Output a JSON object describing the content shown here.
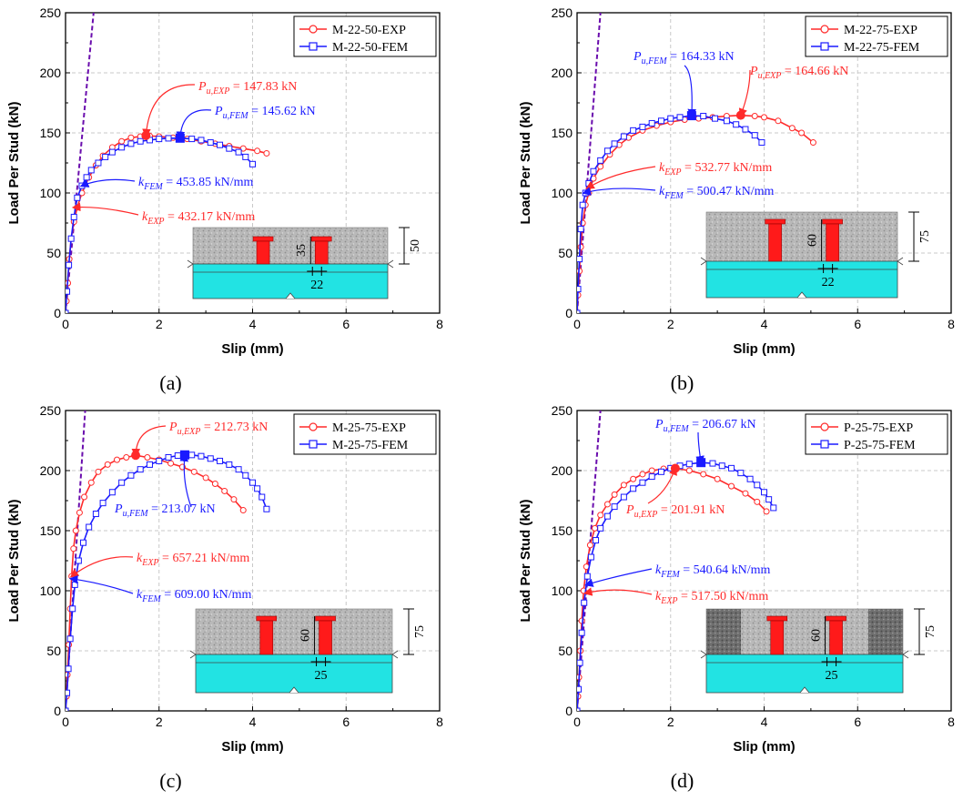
{
  "figure": {
    "colors": {
      "exp": "#ff2a2a",
      "fem": "#1a1aff",
      "slope": "#6a0dad",
      "concrete": "#b9b9b9",
      "steel": "#22e3e3",
      "stud": "#ff1a1a"
    }
  },
  "chart_data": [
    {
      "type": "line",
      "panel_label": "(a)",
      "xlabel": "Slip (mm)",
      "ylabel": "Load Per Stud (kN)",
      "xlim": [
        0,
        8
      ],
      "ylim": [
        0,
        250
      ],
      "xticks": [
        "0",
        "2",
        "4",
        "6",
        "8"
      ],
      "yticks": [
        "0",
        "50",
        "100",
        "150",
        "200",
        "250"
      ],
      "grid": true,
      "legend_position": "top-right",
      "series": [
        {
          "name": "M-22-50-EXP",
          "marker": "circle",
          "color": "#ff2a2a",
          "x": [
            0,
            0.02,
            0.05,
            0.08,
            0.12,
            0.18,
            0.25,
            0.35,
            0.5,
            0.65,
            0.8,
            1.0,
            1.2,
            1.4,
            1.6,
            1.8,
            2.0,
            2.3,
            2.6,
            2.9,
            3.2,
            3.5,
            3.8,
            4.1,
            4.3
          ],
          "y": [
            0,
            10,
            25,
            45,
            62,
            76,
            88,
            100,
            113,
            123,
            131,
            138,
            143,
            146,
            147,
            147.5,
            147,
            146,
            145,
            143,
            141,
            139,
            137,
            135,
            133
          ]
        },
        {
          "name": "M-22-50-FEM",
          "marker": "square",
          "color": "#1a1aff",
          "x": [
            0,
            0.03,
            0.07,
            0.12,
            0.18,
            0.25,
            0.35,
            0.45,
            0.55,
            0.7,
            0.85,
            1.0,
            1.2,
            1.4,
            1.6,
            1.8,
            2.0,
            2.2,
            2.45,
            2.7,
            2.9,
            3.1,
            3.3,
            3.5,
            3.7,
            3.85,
            4.0
          ],
          "y": [
            0,
            18,
            40,
            62,
            80,
            96,
            106,
            113,
            119,
            125,
            130,
            134,
            138,
            141,
            143,
            144,
            145,
            145.5,
            145.6,
            145,
            144,
            142,
            140,
            137,
            134,
            130,
            124
          ]
        }
      ],
      "peaks": [
        {
          "series": "EXP",
          "x": 1.72,
          "y": 147.83
        },
        {
          "series": "FEM",
          "x": 2.45,
          "y": 145.62
        }
      ],
      "slope_line": {
        "x": [
          0,
          0.6
        ],
        "y": [
          0,
          250
        ]
      },
      "annotations": [
        {
          "series": "EXP",
          "symbol": "P",
          "subscript": "u,EXP",
          "value": "= 147.83 kN"
        },
        {
          "series": "FEM",
          "symbol": "P",
          "subscript": "u,FEM",
          "value": "= 145.62 kN"
        },
        {
          "series": "FEM",
          "symbol": "k",
          "subscript": "FEM",
          "value": "= 453.85 kN/mm"
        },
        {
          "series": "EXP",
          "symbol": "k",
          "subscript": "EXP",
          "value": "= 432.17 kN/mm"
        }
      ],
      "inset": {
        "height_dim": "35",
        "total_dim": "50",
        "spacing_dim": "22",
        "type": "M"
      }
    },
    {
      "type": "line",
      "panel_label": "(b)",
      "xlabel": "Slip (mm)",
      "ylabel": "Load Per Stud (kN)",
      "xlim": [
        0,
        8
      ],
      "ylim": [
        0,
        250
      ],
      "xticks": [
        "0",
        "2",
        "4",
        "6",
        "8"
      ],
      "yticks": [
        "0",
        "50",
        "100",
        "150",
        "200",
        "250"
      ],
      "grid": true,
      "legend_position": "top-right",
      "series": [
        {
          "name": "M-22-75-EXP",
          "marker": "circle",
          "color": "#ff2a2a",
          "x": [
            0,
            0.02,
            0.05,
            0.08,
            0.12,
            0.18,
            0.25,
            0.35,
            0.5,
            0.7,
            0.9,
            1.1,
            1.4,
            1.7,
            2.0,
            2.3,
            2.6,
            2.9,
            3.2,
            3.5,
            3.8,
            4.0,
            4.3,
            4.6,
            4.8,
            5.05
          ],
          "y": [
            0,
            15,
            35,
            55,
            75,
            90,
            100,
            112,
            122,
            132,
            140,
            146,
            152,
            156,
            159,
            161,
            162,
            163,
            164,
            164.66,
            164,
            163,
            160,
            154,
            150,
            142
          ]
        },
        {
          "name": "M-22-75-FEM",
          "marker": "square",
          "color": "#1a1aff",
          "x": [
            0,
            0.02,
            0.05,
            0.08,
            0.12,
            0.18,
            0.25,
            0.35,
            0.5,
            0.65,
            0.8,
            1.0,
            1.2,
            1.4,
            1.6,
            1.8,
            2.0,
            2.2,
            2.45,
            2.7,
            2.95,
            3.2,
            3.4,
            3.6,
            3.8,
            3.95
          ],
          "y": [
            0,
            20,
            45,
            70,
            90,
            100,
            108,
            118,
            127,
            135,
            141,
            147,
            152,
            155,
            158,
            160,
            162,
            163,
            164.33,
            164,
            162,
            160,
            157,
            153,
            148,
            142
          ]
        }
      ],
      "peaks": [
        {
          "series": "EXP",
          "x": 3.5,
          "y": 164.66
        },
        {
          "series": "FEM",
          "x": 2.45,
          "y": 164.33
        }
      ],
      "slope_line": {
        "x": [
          0,
          0.5
        ],
        "y": [
          0,
          250
        ]
      },
      "annotations": [
        {
          "series": "FEM",
          "symbol": "P",
          "subscript": "u,FEM",
          "value": "= 164.33 kN"
        },
        {
          "series": "EXP",
          "symbol": "P",
          "subscript": "u,EXP",
          "value": "= 164.66 kN"
        },
        {
          "series": "EXP",
          "symbol": "k",
          "subscript": "EXP",
          "value": "= 532.77 kN/mm"
        },
        {
          "series": "FEM",
          "symbol": "k",
          "subscript": "FEM",
          "value": "= 500.47 kN/mm"
        }
      ],
      "inset": {
        "height_dim": "60",
        "total_dim": "75",
        "spacing_dim": "22",
        "type": "M"
      }
    },
    {
      "type": "line",
      "panel_label": "(c)",
      "xlabel": "Slip (mm)",
      "ylabel": "Load Per Stud (kN)",
      "xlim": [
        0,
        8
      ],
      "ylim": [
        0,
        250
      ],
      "xticks": [
        "0",
        "2",
        "4",
        "6",
        "8"
      ],
      "yticks": [
        "0",
        "50",
        "100",
        "150",
        "200",
        "250"
      ],
      "grid": true,
      "legend_position": "top-right",
      "series": [
        {
          "name": "M-25-75-EXP",
          "marker": "circle",
          "color": "#ff2a2a",
          "x": [
            0,
            0.02,
            0.04,
            0.07,
            0.1,
            0.13,
            0.17,
            0.22,
            0.3,
            0.4,
            0.55,
            0.7,
            0.9,
            1.1,
            1.3,
            1.5,
            1.75,
            2.0,
            2.25,
            2.5,
            2.75,
            3.0,
            3.2,
            3.4,
            3.6,
            3.8
          ],
          "y": [
            0,
            12,
            30,
            55,
            85,
            112,
            135,
            150,
            165,
            178,
            190,
            199,
            205,
            209,
            211,
            212.7,
            211,
            209,
            206,
            203,
            199,
            194,
            189,
            183,
            176,
            167
          ]
        },
        {
          "name": "M-25-75-FEM",
          "marker": "square",
          "color": "#1a1aff",
          "x": [
            0,
            0.03,
            0.06,
            0.1,
            0.15,
            0.2,
            0.28,
            0.38,
            0.5,
            0.65,
            0.8,
            1.0,
            1.2,
            1.4,
            1.6,
            1.8,
            2.0,
            2.2,
            2.4,
            2.55,
            2.7,
            2.9,
            3.1,
            3.3,
            3.5,
            3.7,
            3.85,
            4.0,
            4.1,
            4.2,
            4.3
          ],
          "y": [
            0,
            15,
            35,
            60,
            85,
            105,
            125,
            140,
            153,
            164,
            173,
            182,
            190,
            196,
            201,
            205,
            208,
            211,
            212.5,
            213.07,
            213,
            212,
            210,
            208,
            205,
            201,
            196,
            190,
            185,
            178,
            168
          ]
        }
      ],
      "peaks": [
        {
          "series": "EXP",
          "x": 1.5,
          "y": 212.73
        },
        {
          "series": "FEM",
          "x": 2.55,
          "y": 213.07
        }
      ],
      "slope_line": {
        "x": [
          0,
          0.42
        ],
        "y": [
          0,
          250
        ]
      },
      "annotations": [
        {
          "series": "EXP",
          "symbol": "P",
          "subscript": "u,EXP",
          "value": "= 212.73 kN"
        },
        {
          "series": "FEM",
          "symbol": "P",
          "subscript": "u,FEM",
          "value": "= 213.07 kN"
        },
        {
          "series": "EXP",
          "symbol": "k",
          "subscript": "EXP",
          "value": "= 657.21 kN/mm"
        },
        {
          "series": "FEM",
          "symbol": "k",
          "subscript": "FEM",
          "value": "= 609.00 kN/mm"
        }
      ],
      "inset": {
        "height_dim": "60",
        "total_dim": "75",
        "spacing_dim": "25",
        "type": "M"
      }
    },
    {
      "type": "line",
      "panel_label": "(d)",
      "xlabel": "Slip (mm)",
      "ylabel": "Load Per Stud (kN)",
      "xlim": [
        0,
        8
      ],
      "ylim": [
        0,
        250
      ],
      "xticks": [
        "0",
        "2",
        "4",
        "6",
        "8"
      ],
      "yticks": [
        "0",
        "50",
        "100",
        "150",
        "200",
        "250"
      ],
      "grid": true,
      "legend_position": "top-right",
      "series": [
        {
          "name": "P-25-75-EXP",
          "marker": "circle",
          "color": "#ff2a2a",
          "x": [
            0,
            0.02,
            0.04,
            0.07,
            0.1,
            0.14,
            0.2,
            0.28,
            0.38,
            0.5,
            0.65,
            0.8,
            1.0,
            1.2,
            1.4,
            1.6,
            1.85,
            2.1,
            2.4,
            2.7,
            3.0,
            3.3,
            3.6,
            3.85,
            4.05
          ],
          "y": [
            0,
            12,
            28,
            50,
            75,
            100,
            120,
            138,
            152,
            163,
            172,
            180,
            188,
            193,
            197,
            200,
            201.5,
            201.9,
            200,
            197,
            193,
            187,
            181,
            174,
            166
          ]
        },
        {
          "name": "P-25-75-FEM",
          "marker": "square",
          "color": "#1a1aff",
          "x": [
            0,
            0.03,
            0.06,
            0.1,
            0.15,
            0.22,
            0.3,
            0.4,
            0.5,
            0.65,
            0.8,
            1.0,
            1.2,
            1.4,
            1.6,
            1.8,
            2.0,
            2.2,
            2.4,
            2.65,
            2.9,
            3.1,
            3.3,
            3.5,
            3.7,
            3.85,
            4.0,
            4.1,
            4.2
          ],
          "y": [
            0,
            18,
            40,
            65,
            90,
            112,
            128,
            142,
            152,
            162,
            170,
            178,
            185,
            190,
            195,
            199,
            202,
            204,
            205.5,
            206.67,
            206,
            204,
            202,
            198,
            193,
            188,
            182,
            176,
            169
          ]
        }
      ],
      "peaks": [
        {
          "series": "EXP",
          "x": 2.1,
          "y": 201.91
        },
        {
          "series": "FEM",
          "x": 2.65,
          "y": 206.67
        }
      ],
      "slope_line": {
        "x": [
          0,
          0.5
        ],
        "y": [
          0,
          250
        ]
      },
      "annotations": [
        {
          "series": "FEM",
          "symbol": "P",
          "subscript": "u,FEM",
          "value": "= 206.67 kN"
        },
        {
          "series": "EXP",
          "symbol": "P",
          "subscript": "u,EXP",
          "value": "= 201.91 kN"
        },
        {
          "series": "FEM",
          "symbol": "k",
          "subscript": "FEM",
          "value": "= 540.64 kN/mm"
        },
        {
          "series": "EXP",
          "symbol": "k",
          "subscript": "EXP",
          "value": "= 517.50 kN/mm"
        }
      ],
      "inset": {
        "height_dim": "60",
        "total_dim": "75",
        "spacing_dim": "25",
        "type": "P"
      }
    }
  ]
}
